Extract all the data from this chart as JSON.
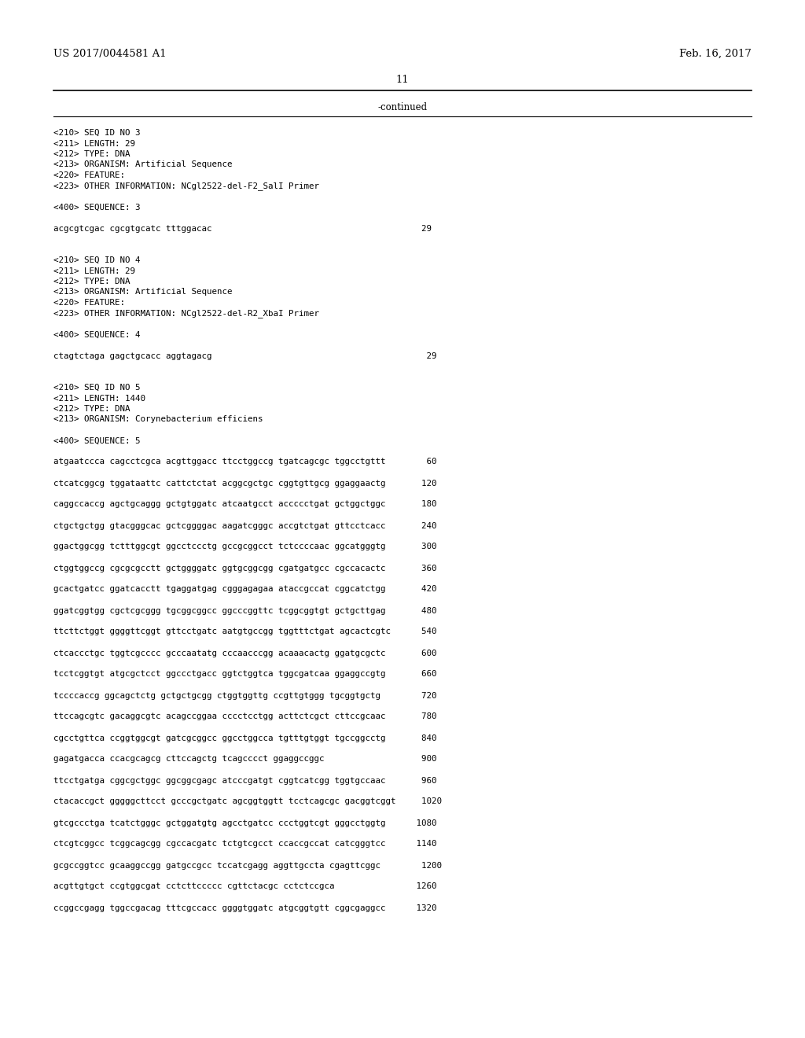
{
  "header_left": "US 2017/0044581 A1",
  "header_right": "Feb. 16, 2017",
  "page_number": "11",
  "continued_text": "-continued",
  "background_color": "#ffffff",
  "text_color": "#000000",
  "content_lines": [
    "<210> SEQ ID NO 3",
    "<211> LENGTH: 29",
    "<212> TYPE: DNA",
    "<213> ORGANISM: Artificial Sequence",
    "<220> FEATURE:",
    "<223> OTHER INFORMATION: NCgl2522-del-F2_SalI Primer",
    "",
    "<400> SEQUENCE: 3",
    "",
    "acgcgtcgac cgcgtgcatc tttggacac                                         29",
    "",
    "",
    "<210> SEQ ID NO 4",
    "<211> LENGTH: 29",
    "<212> TYPE: DNA",
    "<213> ORGANISM: Artificial Sequence",
    "<220> FEATURE:",
    "<223> OTHER INFORMATION: NCgl2522-del-R2_XbaI Primer",
    "",
    "<400> SEQUENCE: 4",
    "",
    "ctagtctaga gagctgcacc aggtagacg                                          29",
    "",
    "",
    "<210> SEQ ID NO 5",
    "<211> LENGTH: 1440",
    "<212> TYPE: DNA",
    "<213> ORGANISM: Corynebacterium efficiens",
    "",
    "<400> SEQUENCE: 5",
    "",
    "atgaatccca cagcctcgca acgttggacc ttcctggccg tgatcagcgc tggcctgttt        60",
    "",
    "ctcatcggcg tggataattc cattctctat acggcgctgc cggtgttgcg ggaggaactg       120",
    "",
    "caggccaccg agctgcaggg gctgtggatc atcaatgcct accccctgat gctggctggc       180",
    "",
    "ctgctgctgg gtacgggcac gctcggggac aagatcgggc accgtctgat gttcctcacc       240",
    "",
    "ggactggcgg tctttggcgt ggcctccctg gccgcggcct tctccccaac ggcatgggtg       300",
    "",
    "ctggtggccg cgcgcgcctt gctggggatc ggtgcggcgg cgatgatgcc cgccacactc       360",
    "",
    "gcactgatcc ggatcacctt tgaggatgag cgggagagaa ataccgccat cggcatctgg       420",
    "",
    "ggatcggtgg cgctcgcggg tgcggcggcc ggcccggttc tcggcggtgt gctgcttgag       480",
    "",
    "ttcttctggt ggggttcggt gttcctgatc aatgtgccgg tggtttctgat agcactcgtc      540",
    "",
    "ctcaccctgc tggtcgcccc gcccaatatg cccaacccgg acaaacactg ggatgcgctc       600",
    "",
    "tcctcggtgt atgcgctcct ggccctgacc ggtctggtca tggcgatcaa ggaggccgtg       660",
    "",
    "tccccaccg ggcagctctg gctgctgcgg ctggtggttg ccgttgtggg tgcggtgctg        720",
    "",
    "ttccagcgtc gacaggcgtc acagccggaa cccctcctgg acttctcgct cttccgcaac       780",
    "",
    "cgcctgttca ccggtggcgt gatcgcggcc ggcctggcca tgtttgtggt tgccggcctg       840",
    "",
    "gagatgacca ccacgcagcg cttccagctg tcagcccct ggaggccggc                   900",
    "",
    "ttcctgatga cggcgctggc ggcggcgagc atcccgatgt cggtcatcgg tggtgccaac       960",
    "",
    "ctacaccgct gggggcttcct gcccgctgatc agcggtggtt tcctcagcgc gacggtcggt     1020",
    "",
    "gtcgccctga tcatctgggc gctggatgtg agcctgatcc ccctggtcgt gggcctggtg      1080",
    "",
    "ctcgtcggcc tcggcagcgg cgccacgatc tctgtcgcct ccaccgccat catcgggtcc      1140",
    "",
    "gcgccggtcc gcaaggccgg gatgccgcc tccatcgagg aggttgccta cgagttcggc        1200",
    "",
    "acgttgtgct ccgtggcgat cctcttccccc cgttctacgc cctctccgca                1260",
    "",
    "ccggccgagg tggccgacag tttcgccacc ggggtggatc atgcggtgtt cggcgaggcc      1320"
  ]
}
